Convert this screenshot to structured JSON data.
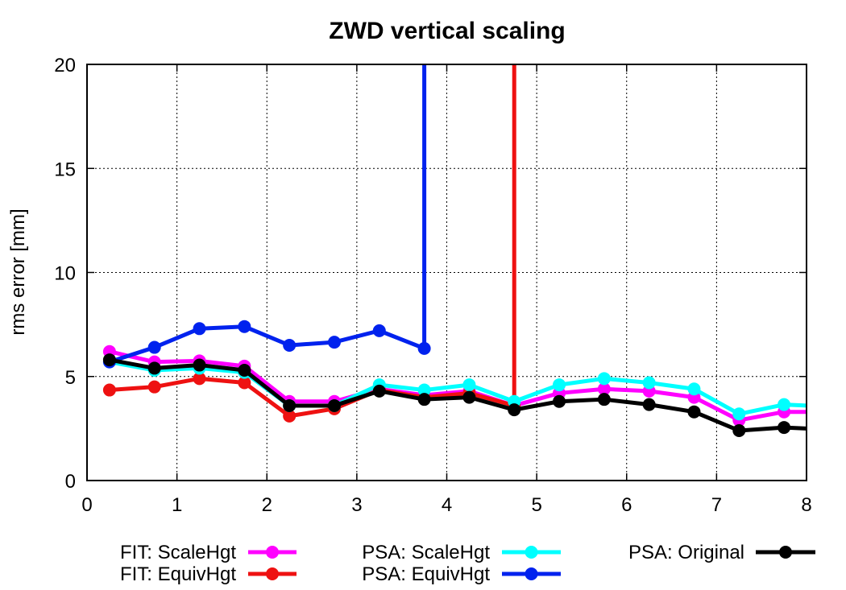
{
  "chart_data": {
    "type": "line",
    "title": "ZWD vertical scaling",
    "xlabel": "",
    "ylabel": "rms error [mm]",
    "xlim": [
      0,
      8
    ],
    "ylim": [
      0,
      20
    ],
    "xticks": [
      0,
      1,
      2,
      3,
      4,
      5,
      6,
      7,
      8
    ],
    "yticks": [
      0,
      5,
      10,
      15,
      20
    ],
    "grid": true,
    "legend_position": "bottom",
    "series": [
      {
        "name": "FIT: ScaleHgt",
        "color": "#ff00ff",
        "x": [
          0.25,
          0.75,
          1.25,
          1.75,
          2.25,
          2.75,
          3.25,
          3.75,
          4.25,
          4.75,
          5.25,
          5.75,
          6.25,
          6.75,
          7.25,
          7.75,
          8.0
        ],
        "y": [
          6.2,
          5.7,
          5.75,
          5.5,
          3.8,
          3.8,
          4.4,
          4.1,
          4.3,
          3.6,
          4.2,
          4.4,
          4.3,
          4.0,
          2.9,
          3.3,
          3.3
        ]
      },
      {
        "name": "FIT: EquivHgt",
        "color": "#ee1111",
        "x": [
          0.25,
          0.75,
          1.25,
          1.75,
          2.25,
          2.75,
          3.25,
          3.75,
          4.25,
          4.75,
          4.75
        ],
        "y": [
          4.35,
          4.5,
          4.9,
          4.7,
          3.1,
          3.45,
          4.35,
          4.0,
          4.2,
          3.6,
          20.0
        ]
      },
      {
        "name": "PSA: ScaleHgt",
        "color": "#00ffff",
        "x": [
          0.25,
          0.75,
          1.25,
          1.75,
          2.25,
          2.75,
          3.25,
          3.75,
          4.25,
          4.75,
          5.25,
          5.75,
          6.25,
          6.75,
          7.25,
          7.75,
          8.0
        ],
        "y": [
          5.7,
          5.3,
          5.4,
          5.2,
          3.6,
          3.6,
          4.6,
          4.35,
          4.6,
          3.8,
          4.6,
          4.9,
          4.7,
          4.4,
          3.2,
          3.65,
          3.6
        ]
      },
      {
        "name": "PSA: EquivHgt",
        "color": "#0022ee",
        "x": [
          0.25,
          0.75,
          1.25,
          1.75,
          2.25,
          2.75,
          3.25,
          3.75,
          3.75
        ],
        "y": [
          5.7,
          6.4,
          7.3,
          7.4,
          6.5,
          6.65,
          7.2,
          6.35,
          20.0
        ]
      },
      {
        "name": "PSA: Original",
        "color": "#000000",
        "x": [
          0.25,
          0.75,
          1.25,
          1.75,
          2.25,
          2.75,
          3.25,
          3.75,
          4.25,
          4.75,
          5.25,
          5.75,
          6.25,
          6.75,
          7.25,
          7.75,
          8.0
        ],
        "y": [
          5.8,
          5.4,
          5.55,
          5.3,
          3.6,
          3.6,
          4.3,
          3.9,
          4.0,
          3.4,
          3.8,
          3.9,
          3.65,
          3.3,
          2.4,
          2.55,
          2.5
        ]
      }
    ]
  }
}
